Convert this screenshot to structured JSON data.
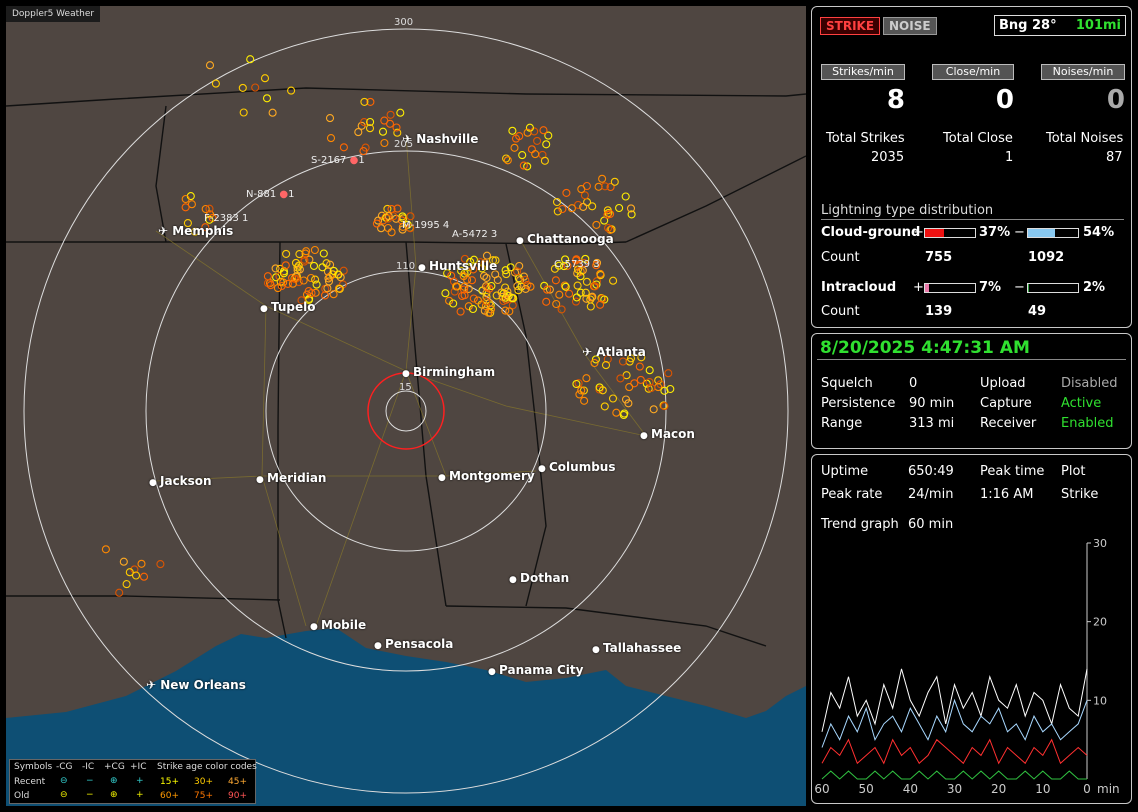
{
  "map": {
    "title": "Doppler5 Weather",
    "ring_labels": {
      "r300": "300",
      "r205": "205",
      "r110": "110",
      "r15": "15"
    },
    "cities": [
      {
        "name": "Nashville",
        "icon": "airport-icon"
      },
      {
        "name": "Memphis",
        "icon": "airport-icon"
      },
      {
        "name": "Chattanooga",
        "icon": "city-dot-icon"
      },
      {
        "name": "Huntsville",
        "icon": "city-dot-icon"
      },
      {
        "name": "Tupelo",
        "icon": "city-dot-icon"
      },
      {
        "name": "Atlanta",
        "icon": "airport-icon"
      },
      {
        "name": "Birmingham",
        "icon": "city-dot-icon"
      },
      {
        "name": "Macon",
        "icon": "city-dot-icon"
      },
      {
        "name": "Jackson",
        "icon": "city-dot-icon"
      },
      {
        "name": "Meridian",
        "icon": "city-dot-icon"
      },
      {
        "name": "Montgomery",
        "icon": "city-dot-icon"
      },
      {
        "name": "Columbus",
        "icon": "city-dot-icon"
      },
      {
        "name": "Dothan",
        "icon": "city-dot-icon"
      },
      {
        "name": "Mobile",
        "icon": "city-dot-icon"
      },
      {
        "name": "Pensacola",
        "icon": "city-dot-icon"
      },
      {
        "name": "Tallahassee",
        "icon": "city-dot-icon"
      },
      {
        "name": "Panama City",
        "icon": "city-dot-icon"
      },
      {
        "name": "New Orleans",
        "icon": "airport-icon"
      }
    ],
    "storm_labels": [
      "S-2167",
      "N-881",
      "F-2383",
      "M-1995",
      "A-5472",
      "C-5739"
    ],
    "storm_suffix": {
      "s2167": "1",
      "n881": "1",
      "f2383": "1",
      "m1995": "4",
      "a5472": "3",
      "c5739": "3"
    },
    "range_ring_color": "#ff2020",
    "water_color": "#0e4f74",
    "land_color": "#4f4641"
  },
  "legend": {
    "symbols": "Symbols",
    "minus_cg": "-CG",
    "minus_ic": "-IC",
    "plus_cg": "+CG",
    "plus_ic": "+IC",
    "age_title": "Strike age color codes",
    "recent": "Recent",
    "old": "Old",
    "age_15": "15+",
    "age_30": "30+",
    "age_45": "45+",
    "age_60": "60+",
    "age_75": "75+",
    "age_90": "90+"
  },
  "status": {
    "strike": "STRIKE",
    "noise": "NOISE",
    "bearing": "Bng 28°",
    "distance": "101mi",
    "strikes_min_label": "Strikes/min",
    "close_min_label": "Close/min",
    "noises_min_label": "Noises/min",
    "strikes_min": "8",
    "close_min": "0",
    "noises_min": "0",
    "total_strikes_label": "Total Strikes",
    "total_close_label": "Total Close",
    "total_noises_label": "Total Noises",
    "total_strikes": "2035",
    "total_close": "1",
    "total_noises": "87",
    "dist_title": "Lightning type distribution",
    "cg_label": "Cloud-ground",
    "ic_label": "Intracloud",
    "plus": "+",
    "minus": "−",
    "cg_pos_pct": "37%",
    "cg_neg_pct": "54%",
    "ic_pos_pct": "7%",
    "ic_neg_pct": "2%",
    "count_label": "Count",
    "cg_pos_count": "755",
    "cg_neg_count": "1092",
    "ic_pos_count": "139",
    "ic_neg_count": "49",
    "cg_pos_fill": 0.37,
    "cg_neg_fill": 0.54,
    "ic_pos_fill": 0.07,
    "ic_neg_fill": 0.02,
    "cg_pos_color": "#ee1111",
    "cg_neg_color": "#88c8f0",
    "ic_pos_color": "#e878a8",
    "ic_neg_color": "#30a040"
  },
  "info": {
    "datetime": "8/20/2025 4:47:31 AM",
    "squelch_label": "Squelch",
    "squelch": "0",
    "persistence_label": "Persistence",
    "persistence": "90 min",
    "range_label": "Range",
    "range": "313 mi",
    "upload_label": "Upload",
    "upload": "Disabled",
    "capture_label": "Capture",
    "capture": "Active",
    "receiver_label": "Receiver",
    "receiver": "Enabled"
  },
  "trend": {
    "uptime_label": "Uptime",
    "uptime": "650:49",
    "peak_time_label": "Peak time",
    "peak_time": "1:16 AM",
    "plot_label": "Plot",
    "plot": "Strike",
    "peak_rate_label": "Peak rate",
    "peak_rate": "24/min",
    "trend_graph_label": "Trend graph",
    "trend_graph": "60 min"
  },
  "chart_data": {
    "type": "line",
    "title": "",
    "xlabel": "min",
    "ylabel": "",
    "xlim": [
      60,
      0
    ],
    "ylim": [
      0,
      30
    ],
    "x_ticks": [
      "60",
      "50",
      "40",
      "30",
      "20",
      "10",
      "0"
    ],
    "y_ticks": [
      "10",
      "20",
      "30"
    ],
    "x": [
      60,
      58,
      56,
      54,
      52,
      50,
      48,
      46,
      44,
      42,
      40,
      38,
      36,
      34,
      32,
      30,
      28,
      26,
      24,
      22,
      20,
      18,
      16,
      14,
      12,
      10,
      8,
      6,
      4,
      2,
      0
    ],
    "series": [
      {
        "color": "#ffffff",
        "values": [
          6,
          11,
          9,
          13,
          8,
          10,
          7,
          12,
          9,
          14,
          10,
          8,
          11,
          13,
          7,
          12,
          9,
          11,
          8,
          13,
          10,
          9,
          12,
          8,
          11,
          10,
          7,
          12,
          9,
          8,
          14
        ]
      },
      {
        "color": "#a8d8ff",
        "values": [
          4,
          7,
          5,
          8,
          6,
          9,
          5,
          7,
          8,
          6,
          9,
          7,
          5,
          8,
          6,
          10,
          7,
          6,
          8,
          7,
          9,
          6,
          7,
          5,
          8,
          6,
          7,
          5,
          6,
          7,
          10
        ]
      },
      {
        "color": "#ff3030",
        "values": [
          2,
          4,
          3,
          5,
          2,
          3,
          4,
          2,
          5,
          3,
          4,
          2,
          3,
          5,
          4,
          3,
          2,
          4,
          3,
          5,
          2,
          4,
          3,
          2,
          4,
          3,
          5,
          2,
          3,
          4,
          3
        ]
      },
      {
        "color": "#30c040",
        "values": [
          0,
          1,
          0,
          1,
          0,
          0,
          1,
          0,
          1,
          0,
          0,
          1,
          0,
          1,
          0,
          0,
          1,
          0,
          1,
          0,
          1,
          0,
          0,
          1,
          0,
          1,
          0,
          0,
          1,
          0,
          0
        ]
      }
    ]
  }
}
